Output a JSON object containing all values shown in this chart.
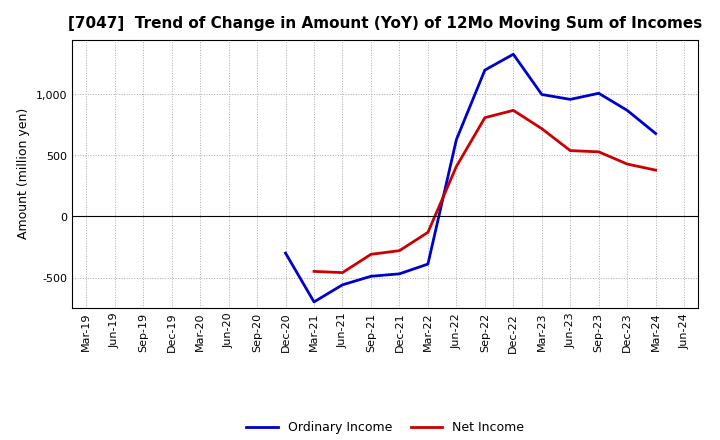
{
  "title": "[7047]  Trend of Change in Amount (YoY) of 12Mo Moving Sum of Incomes",
  "ylabel": "Amount (million yen)",
  "x_labels": [
    "Mar-19",
    "Jun-19",
    "Sep-19",
    "Dec-19",
    "Mar-20",
    "Jun-20",
    "Sep-20",
    "Dec-20",
    "Mar-21",
    "Jun-21",
    "Sep-21",
    "Dec-21",
    "Mar-22",
    "Jun-22",
    "Sep-22",
    "Dec-22",
    "Mar-23",
    "Jun-23",
    "Sep-23",
    "Dec-23",
    "Mar-24",
    "Jun-24"
  ],
  "ordinary_income": [
    null,
    null,
    null,
    null,
    null,
    null,
    null,
    -300,
    -700,
    -560,
    -490,
    -470,
    -390,
    630,
    1200,
    1330,
    1000,
    960,
    1010,
    870,
    680,
    null
  ],
  "net_income": [
    null,
    null,
    null,
    null,
    null,
    null,
    null,
    null,
    -450,
    -460,
    -310,
    -280,
    -130,
    410,
    810,
    870,
    720,
    540,
    530,
    430,
    380,
    null
  ],
  "ordinary_income_color": "#0000cc",
  "net_income_color": "#cc0000",
  "background_color": "#ffffff",
  "plot_bg_color": "#ffffff",
  "grid_color": "#aaaaaa",
  "ylim": [
    -750,
    1450
  ],
  "yticks": [
    -500,
    0,
    500,
    1000
  ],
  "line_width": 2.0,
  "legend_labels": [
    "Ordinary Income",
    "Net Income"
  ],
  "title_fontsize": 11,
  "ylabel_fontsize": 9,
  "tick_fontsize": 8
}
